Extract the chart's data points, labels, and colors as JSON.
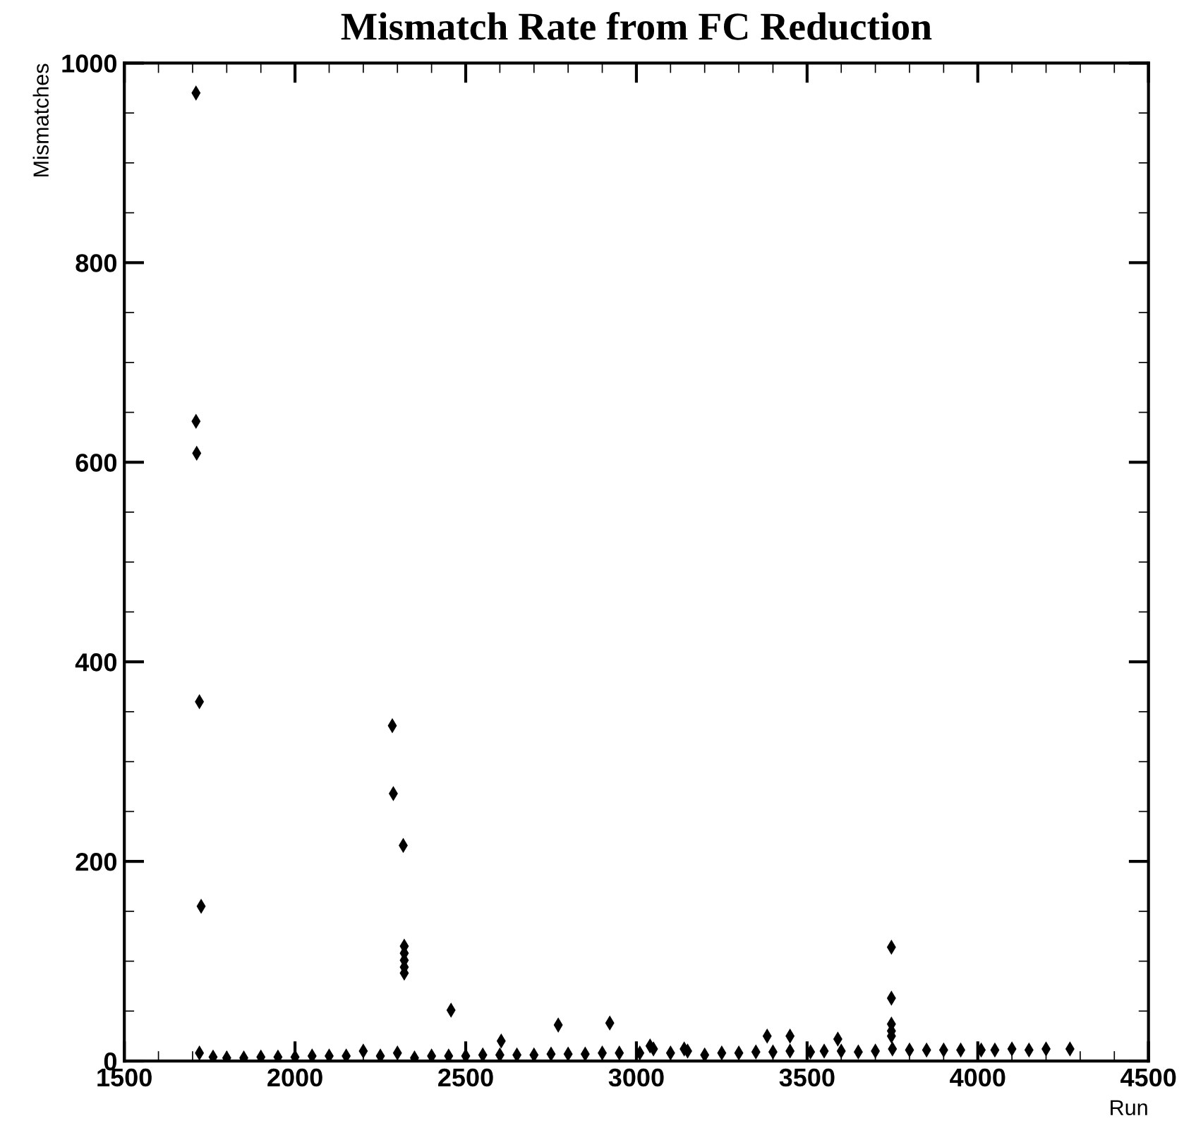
{
  "chart_data": {
    "type": "scatter",
    "title": "Mismatch Rate from FC Reduction",
    "xlabel": "Run",
    "ylabel": "Mismatches",
    "xlim": [
      1500,
      4500
    ],
    "xticks": [
      1500,
      2000,
      2500,
      3000,
      3500,
      4000,
      4500
    ],
    "ylim": [
      0,
      1000
    ],
    "yticks": [
      0,
      200,
      400,
      600,
      800,
      1000
    ],
    "grid": false,
    "legend": false,
    "marker": "diamond",
    "series": [
      {
        "color": "#000000",
        "x": [
          1710,
          1710,
          1712,
          1720,
          1725,
          2285,
          2288,
          2317,
          2320,
          2320,
          2320,
          2320,
          2320,
          2457,
          2604,
          2771,
          2922,
          3040,
          3140,
          3383,
          3450,
          3590,
          3747,
          3747,
          3747,
          3747,
          3747
        ],
        "values": [
          970,
          641,
          609,
          360,
          155,
          336,
          268,
          216,
          115,
          108,
          101,
          94,
          88,
          51,
          20,
          36,
          38,
          15,
          12,
          25,
          25,
          22,
          114,
          63,
          37,
          30,
          25
        ]
      },
      {
        "color": "#000000",
        "x": [
          1720,
          1760,
          1800,
          1850,
          1900,
          1950,
          2000,
          2050,
          2100,
          2150,
          2200,
          2250,
          2300,
          2350,
          2400,
          2450,
          2500,
          2550,
          2600,
          2650,
          2700,
          2750,
          2800,
          2850,
          2900,
          2950,
          3010,
          3050,
          3100,
          3150,
          3200,
          3250,
          3300,
          3350,
          3400,
          3450,
          3510,
          3550,
          3600,
          3650,
          3700,
          3750,
          3800,
          3850,
          3900,
          3950,
          4010,
          4050,
          4100,
          4150,
          4200,
          4270
        ],
        "values": [
          8,
          4,
          3,
          3,
          4,
          4,
          4,
          5,
          5,
          5,
          10,
          5,
          8,
          3,
          5,
          5,
          5,
          6,
          6,
          6,
          6,
          7,
          7,
          7,
          8,
          8,
          8,
          12,
          8,
          10,
          6,
          8,
          8,
          9,
          9,
          10,
          9,
          10,
          10,
          9,
          10,
          12,
          11,
          11,
          11,
          11,
          11,
          11,
          12,
          11,
          12,
          12
        ]
      }
    ]
  }
}
